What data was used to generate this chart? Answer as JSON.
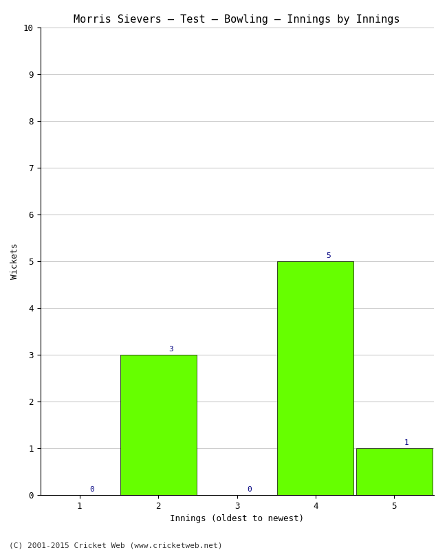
{
  "title": "Morris Sievers – Test – Bowling – Innings by Innings",
  "xlabel": "Innings (oldest to newest)",
  "ylabel": "Wickets",
  "categories": [
    1,
    2,
    3,
    4,
    5
  ],
  "values": [
    0,
    3,
    0,
    5,
    1
  ],
  "bar_color": "#66ff00",
  "bar_edge_color": "#000000",
  "bar_edge_width": 0.5,
  "ylim": [
    0,
    10
  ],
  "yticks": [
    0,
    1,
    2,
    3,
    4,
    5,
    6,
    7,
    8,
    9,
    10
  ],
  "background_color": "#ffffff",
  "grid_color": "#cccccc",
  "label_color": "#000080",
  "title_fontsize": 11,
  "axis_label_fontsize": 9,
  "tick_fontsize": 9,
  "value_label_fontsize": 8,
  "footer_text": "(C) 2001-2015 Cricket Web (www.cricketweb.net)",
  "footer_fontsize": 8,
  "bar_width": 0.97
}
